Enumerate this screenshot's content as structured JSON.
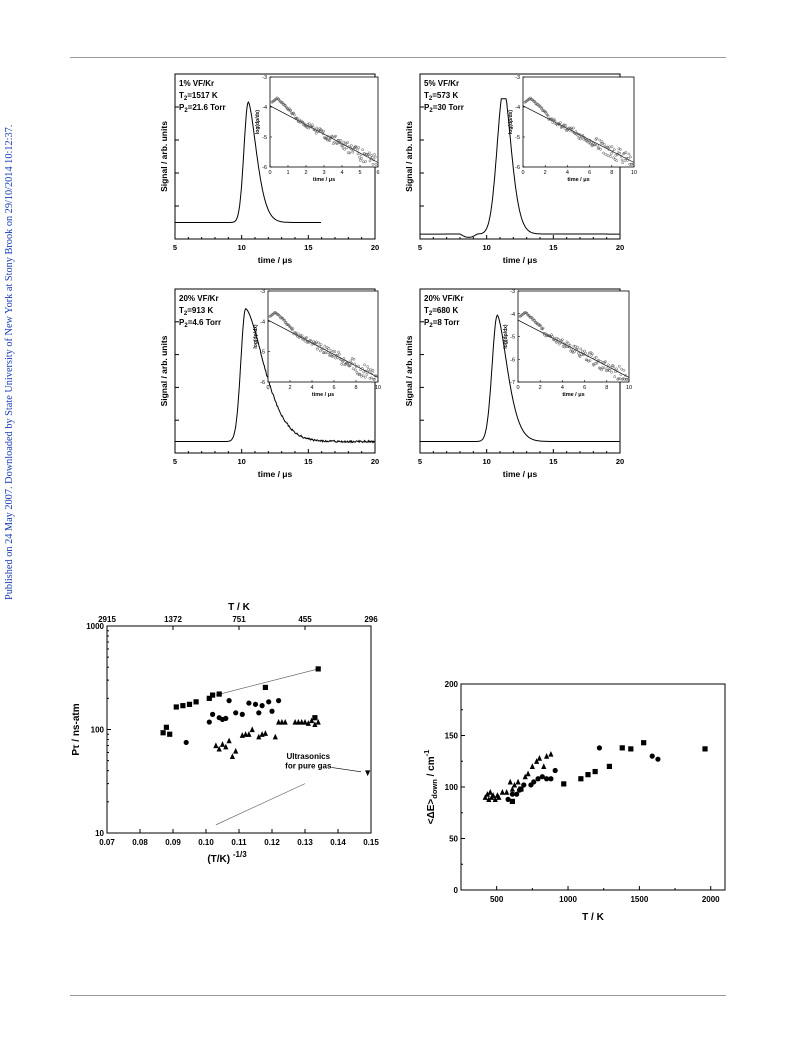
{
  "sidebar_text": "Published on 24 May 2007. Downloaded by State University of New York at Stony Brook on 29/10/2014 10:12:37.",
  "panels": [
    {
      "label1": "1% VF/Kr",
      "label2": "T",
      "label2sub": "2",
      "label2val": "=1517 K",
      "label3": "P",
      "label3sub": "2",
      "label3val": "=21.6 Torr",
      "xticks": [
        "5",
        "10",
        "15",
        "20"
      ],
      "inset_xticks": [
        "0",
        "1",
        "2",
        "3",
        "4",
        "5",
        "6"
      ],
      "inset_yticks": [
        "-3",
        "-4",
        "-5",
        "-6"
      ]
    },
    {
      "label1": "5% VF/Kr",
      "label2": "T",
      "label2sub": "2",
      "label2val": "=573 K",
      "label3": "P",
      "label3sub": "2",
      "label3val": "=30  Torr",
      "xticks": [
        "5",
        "10",
        "15",
        "20"
      ],
      "inset_xticks": [
        "0",
        "2",
        "4",
        "6",
        "8",
        "10"
      ],
      "inset_yticks": [
        "-3",
        "-4",
        "-5",
        "-6"
      ]
    },
    {
      "label1": "20% VF/Kr",
      "label2": "T",
      "label2sub": "2",
      "label2val": "=913 K",
      "label3": "P",
      "label3sub": "2",
      "label3val": "=4.6  Torr",
      "xticks": [
        "5",
        "10",
        "15",
        "20"
      ],
      "inset_xticks": [
        "0",
        "2",
        "4",
        "6",
        "8",
        "10"
      ],
      "inset_yticks": [
        "-3",
        "-4",
        "-5",
        "-6"
      ]
    },
    {
      "label1": "20% VF/Kr",
      "label2": "T",
      "label2sub": "2",
      "label2val": "=680 K",
      "label3": "P",
      "label3sub": "2",
      "label3val": "=8  Torr",
      "xticks": [
        "5",
        "10",
        "15",
        "20"
      ],
      "inset_xticks": [
        "0",
        "2",
        "4",
        "6",
        "8",
        "10"
      ],
      "inset_yticks": [
        "-3",
        "-4",
        "-5",
        "-6",
        "-7"
      ]
    }
  ],
  "panel_common": {
    "ylabel": "Signal / arb. units",
    "xlabel": "time / μs",
    "inset_ylabel": "log(dρ/dx)",
    "inset_xlabel": "time / μs"
  },
  "chart_data": [
    {
      "type": "scatter",
      "xlabel": "(T/K)",
      "xlabel_sup": "-1/3",
      "ylabel": "Pτ / ns-atm",
      "top_axis_label": "T / K",
      "top_ticks": [
        "2915",
        "1372",
        "751",
        "455",
        "296"
      ],
      "xlim": [
        0.07,
        0.15
      ],
      "ylim": [
        10,
        1000
      ],
      "yscale": "log",
      "xticks": [
        "0.07",
        "0.08",
        "0.09",
        "0.10",
        "0.11",
        "0.12",
        "0.13",
        "0.14",
        "0.15"
      ],
      "yticks": [
        "10",
        "100",
        "1000"
      ],
      "annotation_line1": "Ultrasonics",
      "annotation_line2": "for pure gas",
      "series": [
        {
          "marker": "square",
          "points": [
            [
              0.087,
              93
            ],
            [
              0.088,
              105
            ],
            [
              0.089,
              90
            ],
            [
              0.091,
              165
            ],
            [
              0.093,
              170
            ],
            [
              0.095,
              175
            ],
            [
              0.097,
              185
            ],
            [
              0.101,
              200
            ],
            [
              0.102,
              215
            ],
            [
              0.104,
              220
            ],
            [
              0.118,
              255
            ],
            [
              0.133,
              130
            ],
            [
              0.134,
              385
            ]
          ]
        },
        {
          "marker": "circle",
          "points": [
            [
              0.094,
              75
            ],
            [
              0.101,
              118
            ],
            [
              0.102,
              140
            ],
            [
              0.104,
              130
            ],
            [
              0.105,
              125
            ],
            [
              0.106,
              128
            ],
            [
              0.107,
              190
            ],
            [
              0.109,
              145
            ],
            [
              0.111,
              140
            ],
            [
              0.113,
              180
            ],
            [
              0.115,
              175
            ],
            [
              0.116,
              145
            ],
            [
              0.117,
              170
            ],
            [
              0.119,
              185
            ],
            [
              0.12,
              150
            ],
            [
              0.122,
              190
            ]
          ]
        },
        {
          "marker": "triangle",
          "points": [
            [
              0.103,
              70
            ],
            [
              0.104,
              65
            ],
            [
              0.105,
              72
            ],
            [
              0.106,
              68
            ],
            [
              0.107,
              78
            ],
            [
              0.108,
              55
            ],
            [
              0.109,
              62
            ],
            [
              0.111,
              88
            ],
            [
              0.112,
              90
            ],
            [
              0.113,
              90
            ],
            [
              0.114,
              100
            ],
            [
              0.116,
              85
            ],
            [
              0.117,
              90
            ],
            [
              0.118,
              92
            ],
            [
              0.121,
              85
            ],
            [
              0.122,
              118
            ],
            [
              0.123,
              118
            ],
            [
              0.124,
              118
            ],
            [
              0.127,
              118
            ],
            [
              0.128,
              118
            ],
            [
              0.129,
              118
            ],
            [
              0.13,
              118
            ],
            [
              0.131,
              115
            ],
            [
              0.132,
              122
            ],
            [
              0.133,
              112
            ],
            [
              0.134,
              118
            ]
          ]
        },
        {
          "marker": "triangle-down",
          "points": [
            [
              0.149,
              38
            ]
          ]
        }
      ]
    },
    {
      "type": "scatter",
      "xlabel": "T / K",
      "ylabel": "<ΔE>",
      "ylabel_sub": "down",
      "ylabel_unit": "/ cm",
      "ylabel_sup": "-1",
      "xlim": [
        250,
        2100
      ],
      "ylim": [
        0,
        200
      ],
      "xticks": [
        "500",
        "1000",
        "1500",
        "2000"
      ],
      "yticks": [
        "0",
        "50",
        "100",
        "150",
        "200"
      ],
      "series": [
        {
          "marker": "triangle",
          "points": [
            [
              420,
              90
            ],
            [
              435,
              93
            ],
            [
              445,
              88
            ],
            [
              455,
              95
            ],
            [
              465,
              90
            ],
            [
              475,
              92
            ],
            [
              490,
              88
            ],
            [
              505,
              92
            ],
            [
              515,
              90
            ],
            [
              540,
              95
            ],
            [
              570,
              95
            ],
            [
              595,
              105
            ],
            [
              610,
              98
            ],
            [
              625,
              102
            ],
            [
              650,
              105
            ],
            [
              700,
              110
            ],
            [
              720,
              113
            ],
            [
              750,
              120
            ],
            [
              780,
              125
            ],
            [
              800,
              128
            ],
            [
              830,
              120
            ],
            [
              850,
              130
            ],
            [
              880,
              132
            ]
          ]
        },
        {
          "marker": "circle",
          "points": [
            [
              580,
              88
            ],
            [
              610,
              93
            ],
            [
              640,
              93
            ],
            [
              660,
              97
            ],
            [
              690,
              102
            ],
            [
              740,
              102
            ],
            [
              760,
              105
            ],
            [
              790,
              108
            ],
            [
              820,
              110
            ],
            [
              850,
              108
            ],
            [
              880,
              108
            ],
            [
              910,
              116
            ],
            [
              1220,
              138
            ],
            [
              1590,
              130
            ],
            [
              1630,
              127
            ]
          ]
        },
        {
          "marker": "square",
          "points": [
            [
              610,
              86
            ],
            [
              670,
              98
            ],
            [
              970,
              103
            ],
            [
              1090,
              108
            ],
            [
              1140,
              112
            ],
            [
              1190,
              115
            ],
            [
              1290,
              120
            ],
            [
              1380,
              138
            ],
            [
              1440,
              137
            ],
            [
              1530,
              143
            ],
            [
              1960,
              137
            ]
          ]
        }
      ]
    }
  ]
}
